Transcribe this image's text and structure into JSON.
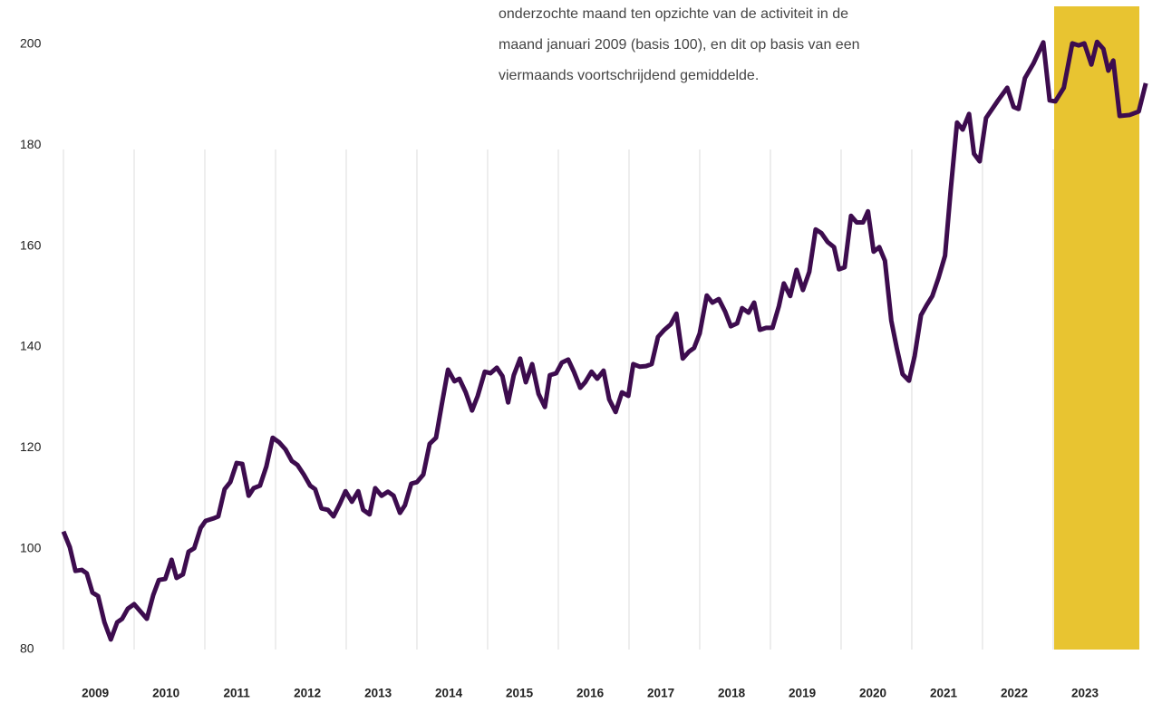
{
  "chart_data": {
    "type": "line",
    "annotation": [
      "onderzochte maand ten opzichte van de activiteit in de",
      "maand januari 2009 (basis 100), en dit op basis van een",
      "viermaands voortschrijdend gemiddelde."
    ],
    "x": [
      2009,
      2009.09,
      2009.17,
      2009.26,
      2009.33,
      2009.41,
      2009.49,
      2009.58,
      2009.67,
      2009.76,
      2009.83,
      2009.91,
      2010,
      2010.08,
      2010.18,
      2010.27,
      2010.35,
      2010.44,
      2010.53,
      2010.6,
      2010.69,
      2010.77,
      2010.85,
      2010.94,
      2011.01,
      2011.12,
      2011.19,
      2011.28,
      2011.36,
      2011.45,
      2011.53,
      2011.62,
      2011.69,
      2011.78,
      2011.87,
      2011.96,
      2012.05,
      2012.14,
      2012.23,
      2012.31,
      2012.4,
      2012.49,
      2012.56,
      2012.65,
      2012.74,
      2012.82,
      2012.91,
      2012.99,
      2013.08,
      2013.17,
      2013.24,
      2013.33,
      2013.41,
      2013.5,
      2013.59,
      2013.67,
      2013.76,
      2013.83,
      2013.92,
      2014,
      2014.09,
      2014.18,
      2014.27,
      2014.35,
      2014.44,
      2014.53,
      2014.6,
      2014.69,
      2014.78,
      2014.86,
      2014.96,
      2015.04,
      2015.13,
      2015.21,
      2015.29,
      2015.37,
      2015.46,
      2015.54,
      2015.63,
      2015.72,
      2015.81,
      2015.88,
      2015.97,
      2016.05,
      2016.14,
      2016.22,
      2016.31,
      2016.38,
      2016.47,
      2016.55,
      2016.64,
      2016.72,
      2016.81,
      2016.9,
      2016.99,
      2017.06,
      2017.15,
      2017.24,
      2017.32,
      2017.41,
      2017.5,
      2017.59,
      2017.67,
      2017.76,
      2017.85,
      2017.92,
      2018,
      2018.1,
      2018.18,
      2018.27,
      2018.36,
      2018.44,
      2018.53,
      2018.6,
      2018.69,
      2018.77,
      2018.85,
      2018.94,
      2019.03,
      2019.12,
      2019.19,
      2019.28,
      2019.37,
      2019.46,
      2019.55,
      2019.64,
      2019.72,
      2019.81,
      2019.9,
      2019.97,
      2020.05,
      2020.14,
      2020.22,
      2020.31,
      2020.38,
      2020.46,
      2020.54,
      2020.62,
      2020.71,
      2020.79,
      2020.87,
      2020.96,
      2021.04,
      2021.13,
      2021.21,
      2021.29,
      2021.38,
      2021.47,
      2021.55,
      2021.64,
      2021.72,
      2021.81,
      2021.88,
      2021.96,
      2022.05,
      2022.22,
      2022.35,
      2022.44,
      2022.51,
      2022.6,
      2022.72,
      2022.86,
      2022.95,
      2023.03,
      2023.15,
      2023.27,
      2023.36,
      2023.44,
      2023.54,
      2023.62,
      2023.71,
      2023.78,
      2023.85,
      2023.94,
      2024.08,
      2024.21,
      2024.31
    ],
    "values": [
      103.4,
      100.3,
      95.6,
      95.8,
      95.1,
      91.3,
      90.6,
      85.4,
      82.0,
      85.4,
      86.1,
      88.1,
      89.0,
      87.7,
      86.1,
      90.8,
      93.8,
      94.0,
      97.8,
      94.2,
      94.9,
      99.4,
      100.1,
      104.1,
      105.5,
      106.0,
      106.4,
      111.8,
      113.2,
      117.0,
      116.8,
      110.5,
      112.0,
      112.5,
      116.3,
      122.0,
      121.1,
      119.7,
      117.4,
      116.6,
      114.7,
      112.5,
      111.8,
      108.0,
      107.7,
      106.4,
      108.9,
      111.4,
      109.3,
      111.4,
      107.7,
      106.8,
      112.0,
      110.5,
      111.3,
      110.5,
      107.1,
      108.6,
      112.9,
      113.2,
      114.7,
      120.8,
      122.0,
      128.5,
      135.5,
      133.2,
      133.7,
      131.0,
      127.4,
      130.3,
      135.1,
      134.8,
      135.9,
      134.2,
      129.0,
      134.4,
      137.7,
      133.0,
      136.6,
      130.7,
      128.1,
      134.4,
      134.8,
      136.9,
      137.5,
      135.1,
      131.9,
      133.0,
      135.1,
      133.7,
      135.3,
      129.6,
      127.1,
      131.0,
      130.3,
      136.6,
      136.1,
      136.2,
      136.6,
      142.0,
      143.4,
      144.5,
      146.6,
      137.7,
      139.1,
      139.8,
      142.7,
      150.2,
      148.8,
      149.5,
      147.0,
      144.1,
      144.7,
      147.7,
      146.8,
      148.8,
      143.4,
      143.8,
      143.8,
      148.1,
      152.6,
      150.1,
      155.3,
      151.3,
      154.9,
      163.3,
      162.6,
      160.8,
      159.8,
      155.4,
      155.8,
      166.0,
      164.7,
      164.7,
      166.9,
      158.9,
      159.8,
      157.1,
      145.2,
      139.6,
      134.6,
      133.3,
      138.2,
      146.3,
      148.3,
      150.1,
      153.8,
      158.1,
      171.1,
      184.5,
      183.1,
      186.2,
      178.3,
      176.8,
      185.4,
      188.9,
      191.4,
      187.6,
      187.2,
      193.3,
      196.2,
      200.4,
      188.9,
      188.7,
      191.4,
      200.2,
      199.8,
      200.2,
      196.0,
      200.5,
      199.1,
      194.8,
      196.8,
      185.8,
      186.0,
      186.7,
      192.3
    ],
    "color": "#3d0c4e",
    "xlim": [
      2009,
      2024.33
    ],
    "xticks": [
      2009,
      2010,
      2011,
      2012,
      2013,
      2014,
      2015,
      2016,
      2017,
      2018,
      2019,
      2020,
      2021,
      2022,
      2023
    ],
    "ylim": [
      80,
      200
    ],
    "yticks": [
      80,
      100,
      120,
      140,
      160,
      180,
      200
    ],
    "grid": "x"
  }
}
